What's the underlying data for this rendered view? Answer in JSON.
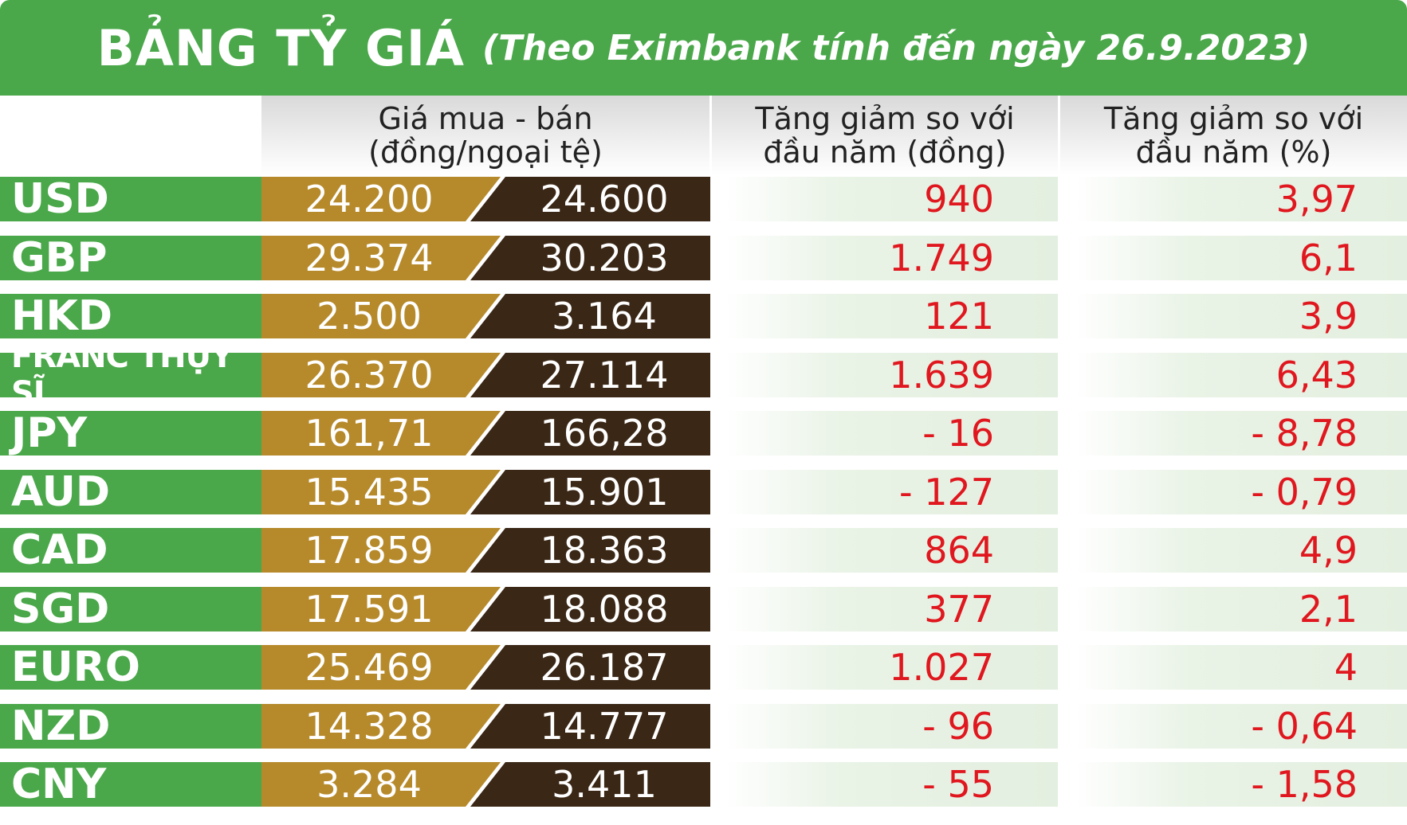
{
  "title": {
    "main": "BẢNG TỶ GIÁ",
    "sub": "(Theo Eximbank tính đến ngày 26.9.2023)"
  },
  "headers": {
    "price": [
      "Giá mua - bán",
      "(đồng/ngoại tệ)"
    ],
    "change_dong": [
      "Tăng giảm so với",
      "đầu năm (đồng)"
    ],
    "change_pct": [
      "Tăng giảm so với",
      "đầu năm (%)"
    ]
  },
  "colors": {
    "green": "#4aa84a",
    "buy": "#b68a2b",
    "sell": "#3a2716",
    "change_text": "#e0171e"
  },
  "rows": [
    {
      "currency": "USD",
      "buy": "24.200",
      "sell": "24.600",
      "change_dong": "940",
      "change_pct": "3,97"
    },
    {
      "currency": "GBP",
      "buy": "29.374",
      "sell": "30.203",
      "change_dong": "1.749",
      "change_pct": "6,1"
    },
    {
      "currency": "HKD",
      "buy": "2.500",
      "sell": "3.164",
      "change_dong": "121",
      "change_pct": "3,9"
    },
    {
      "currency": "FRANC THỤY SĨ",
      "buy": "26.370",
      "sell": "27.114",
      "change_dong": "1.639",
      "change_pct": "6,43"
    },
    {
      "currency": "JPY",
      "buy": "161,71",
      "sell": "166,28",
      "change_dong": "- 16",
      "change_pct": "- 8,78"
    },
    {
      "currency": "AUD",
      "buy": "15.435",
      "sell": "15.901",
      "change_dong": "- 127",
      "change_pct": "- 0,79"
    },
    {
      "currency": "CAD",
      "buy": "17.859",
      "sell": "18.363",
      "change_dong": "864",
      "change_pct": "4,9"
    },
    {
      "currency": "SGD",
      "buy": "17.591",
      "sell": "18.088",
      "change_dong": "377",
      "change_pct": "2,1"
    },
    {
      "currency": "EURO",
      "buy": "25.469",
      "sell": "26.187",
      "change_dong": "1.027",
      "change_pct": "4"
    },
    {
      "currency": "NZD",
      "buy": "14.328",
      "sell": "14.777",
      "change_dong": "- 96",
      "change_pct": "- 0,64"
    },
    {
      "currency": "CNY",
      "buy": "3.284",
      "sell": "3.411",
      "change_dong": "- 55",
      "change_pct": "- 1,58"
    }
  ]
}
